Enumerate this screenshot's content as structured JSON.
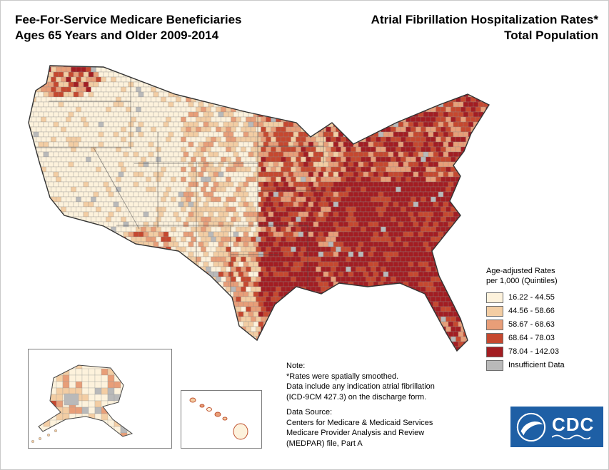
{
  "titles": {
    "left_line1": "Fee-For-Service Medicare Beneficiaries",
    "left_line2": "Ages 65 Years and Older 2009-2014",
    "right_line1": "Atrial Fibrillation Hospitalization Rates*",
    "right_line2": "Total Population"
  },
  "legend": {
    "title_line1": "Age-adjusted Rates",
    "title_line2": "per 1,000 (Quintiles)",
    "items": [
      {
        "label": "16.22 - 44.55",
        "color": "#fdf2dc"
      },
      {
        "label": "44.56 - 58.66",
        "color": "#f3cda3"
      },
      {
        "label": "58.67 - 68.63",
        "color": "#e89e78"
      },
      {
        "label": "68.64 - 78.03",
        "color": "#c6482f"
      },
      {
        "label": "78.04 - 142.03",
        "color": "#a31d22"
      },
      {
        "label": "Insufficient Data",
        "color": "#b9b9b9"
      }
    ]
  },
  "notes": {
    "heading": "Note:",
    "lines": [
      "*Rates were spatially smoothed.",
      "Data include any indication atrial fibrillation",
      "(ICD-9CM 427.3) on the discharge form."
    ]
  },
  "datasource": {
    "heading": "Data Source:",
    "lines": [
      "Centers for Medicare & Medicaid Services",
      "Medicare Provider Analysis and Review",
      "(MEDPAR) file, Part A"
    ]
  },
  "logo": {
    "cdc_label": "CDC"
  }
}
